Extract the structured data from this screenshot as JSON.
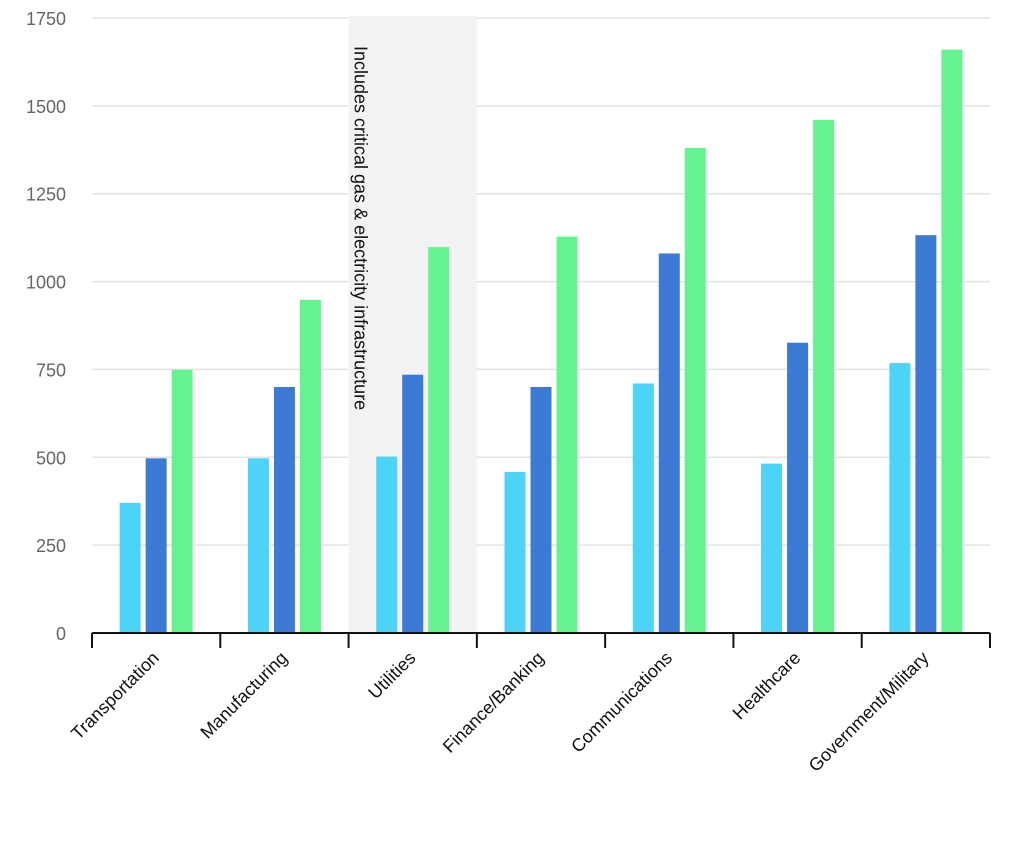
{
  "chart_data": {
    "type": "bar",
    "categories": [
      "Transportation",
      "Manufacturing",
      "Utilities",
      "Finance/Banking",
      "Communications",
      "Healthcare",
      "Government/Military"
    ],
    "series": [
      {
        "values": [
          370,
          497,
          502,
          458,
          710,
          482,
          768
        ],
        "color": "#4dd3f8"
      },
      {
        "values": [
          497,
          700,
          735,
          700,
          1080,
          826,
          1132
        ],
        "color": "#3d7ad6"
      },
      {
        "values": [
          749,
          948,
          1098,
          1128,
          1380,
          1460,
          1660
        ],
        "color": "#65f391"
      }
    ],
    "ylim": [
      0,
      1750
    ],
    "yticks": [
      0,
      250,
      500,
      750,
      1000,
      1250,
      1500,
      1750
    ],
    "grid": true,
    "legend": "none",
    "annotation": {
      "text": "Includes critical gas & electricity infrastructure",
      "category": "Utilities",
      "band_color": "#f2f2f2"
    }
  }
}
